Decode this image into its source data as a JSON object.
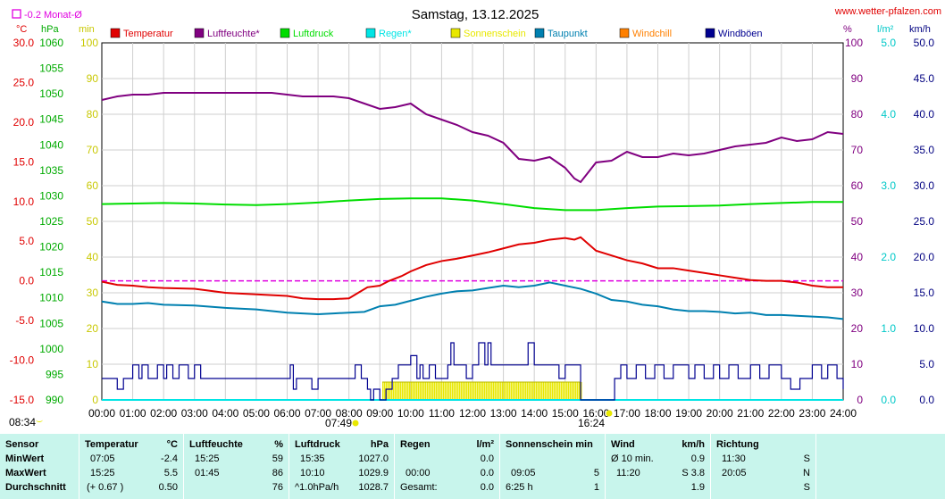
{
  "header": {
    "title": "Samstag, 13.12.2025",
    "site": "www.wetter-pfalzen.com",
    "rain_month_label": "-0.2 Monat-Ø"
  },
  "axes": {
    "left_units": [
      "°C",
      "hPa",
      "min"
    ],
    "right_units": [
      "%",
      "l/m²",
      "km/h"
    ],
    "temp_ticks": [
      "30.0",
      "25.0",
      "20.0",
      "15.0",
      "10.0",
      "5.0",
      "0.0",
      "-5.0",
      "-10.0",
      "-15.0"
    ],
    "pressure_ticks": [
      "1060",
      "1055",
      "1050",
      "1045",
      "1040",
      "1035",
      "1030",
      "1025",
      "1020",
      "1015",
      "1010",
      "1005",
      "1000",
      "995",
      "990"
    ],
    "min_ticks": [
      "100",
      "90",
      "80",
      "70",
      "60",
      "50",
      "40",
      "30",
      "20",
      "10",
      "0"
    ],
    "pct_ticks": [
      "100",
      "90",
      "80",
      "70",
      "60",
      "50",
      "40",
      "30",
      "20",
      "10",
      "0"
    ],
    "rain_ticks": [
      "5.0",
      "4.0",
      "3.0",
      "2.0",
      "1.0",
      "0.0"
    ],
    "wind_ticks": [
      "50.0",
      "45.0",
      "40.0",
      "35.0",
      "30.0",
      "25.0",
      "20.0",
      "15.0",
      "10.0",
      "5.0",
      "0.0"
    ],
    "time_ticks": [
      "00:00",
      "01:00",
      "02:00",
      "03:00",
      "04:00",
      "05:00",
      "06:00",
      "07:00",
      "08:00",
      "09:00",
      "10:00",
      "11:00",
      "12:00",
      "13:00",
      "14:00",
      "15:00",
      "16:00",
      "17:00",
      "18:00",
      "19:00",
      "20:00",
      "21:00",
      "22:00",
      "23:00",
      "24:00"
    ],
    "sunrise": "07:49",
    "sunset": "16:24",
    "moon_time": "08:34"
  },
  "legend": [
    {
      "label": "Temperatur",
      "color": "#e00000"
    },
    {
      "label": "Luftfeuchte*",
      "color": "#800080"
    },
    {
      "label": "Luftdruck",
      "color": "#00dd00"
    },
    {
      "label": "Regen*",
      "color": "#00e5e5"
    },
    {
      "label": "Sonnenschein",
      "color": "#e8e800"
    },
    {
      "label": "Taupunkt",
      "color": "#0080b0"
    },
    {
      "label": "Windchill",
      "color": "#ff8000"
    },
    {
      "label": "Windböen",
      "color": "#000090"
    }
  ],
  "chart_data": {
    "type": "line",
    "title": "Samstag, 13.12.2025",
    "x_unit": "hour of day",
    "xlim": [
      0,
      24
    ],
    "grid": true,
    "series": [
      {
        "name": "Temperatur",
        "axis": "°C",
        "ylim": [
          -15,
          30
        ],
        "color": "#e00000",
        "x": [
          0,
          0.5,
          1,
          1.5,
          2,
          3,
          4,
          5,
          6,
          6.5,
          7,
          7.5,
          8,
          8.3,
          8.6,
          9,
          9.3,
          9.7,
          10,
          10.5,
          11,
          11.5,
          12,
          12.5,
          13,
          13.5,
          14,
          14.5,
          15,
          15.3,
          15.5,
          16,
          16.5,
          17,
          17.5,
          18,
          18.5,
          19,
          19.5,
          20,
          20.5,
          21,
          21.5,
          22,
          22.5,
          23,
          23.5,
          24
        ],
        "y": [
          -0.1,
          -0.5,
          -0.6,
          -0.8,
          -0.9,
          -1.0,
          -1.5,
          -1.7,
          -1.9,
          -2.2,
          -2.3,
          -2.3,
          -2.2,
          -1.5,
          -0.8,
          -0.6,
          0.0,
          0.6,
          1.2,
          2.0,
          2.5,
          2.8,
          3.2,
          3.6,
          4.1,
          4.6,
          4.8,
          5.2,
          5.4,
          5.2,
          5.5,
          3.8,
          3.2,
          2.6,
          2.2,
          1.6,
          1.6,
          1.3,
          1.0,
          0.7,
          0.4,
          0.1,
          0.0,
          0.0,
          -0.2,
          -0.6,
          -0.8,
          -0.8
        ]
      },
      {
        "name": "Taupunkt",
        "axis": "°C",
        "ylim": [
          -15,
          30
        ],
        "color": "#0080b0",
        "x": [
          0,
          0.5,
          1,
          1.5,
          2,
          3,
          4,
          5,
          6,
          6.5,
          7,
          7.5,
          8,
          8.5,
          9,
          9.5,
          10,
          10.5,
          11,
          11.5,
          12,
          12.5,
          13,
          13.5,
          14,
          14.5,
          15,
          15.5,
          16,
          16.5,
          17,
          17.5,
          18,
          18.5,
          19,
          19.5,
          20,
          20.5,
          21,
          21.5,
          22,
          22.5,
          23,
          23.5,
          24
        ],
        "y": [
          -2.6,
          -2.9,
          -2.9,
          -2.8,
          -3.0,
          -3.1,
          -3.4,
          -3.6,
          -4.0,
          -4.1,
          -4.2,
          -4.1,
          -4.0,
          -3.9,
          -3.2,
          -3.0,
          -2.5,
          -2.0,
          -1.6,
          -1.3,
          -1.2,
          -0.9,
          -0.6,
          -0.8,
          -0.6,
          -0.2,
          -0.6,
          -1.0,
          -1.6,
          -2.4,
          -2.6,
          -3.0,
          -3.2,
          -3.6,
          -3.8,
          -3.8,
          -3.9,
          -4.1,
          -4.0,
          -4.3,
          -4.3,
          -4.4,
          -4.5,
          -4.6,
          -4.8
        ]
      },
      {
        "name": "Luftfeuchte*",
        "axis": "%",
        "ylim": [
          0,
          100
        ],
        "color": "#800080",
        "x": [
          0,
          0.5,
          1,
          1.5,
          2,
          2.5,
          3,
          3.5,
          4,
          4.5,
          5,
          5.5,
          6,
          6.5,
          7,
          7.5,
          8,
          8.5,
          9,
          9.5,
          10,
          10.5,
          11,
          11.5,
          12,
          12.5,
          13,
          13.5,
          14,
          14.5,
          15,
          15.3,
          15.5,
          16,
          16.5,
          17,
          17.5,
          18,
          18.5,
          19,
          19.5,
          20,
          20.5,
          21,
          21.5,
          22,
          22.5,
          23,
          23.5,
          24
        ],
        "y": [
          84,
          85,
          85.5,
          85.5,
          86,
          86,
          86,
          86,
          86,
          86,
          86,
          86,
          85.5,
          85,
          85,
          85,
          84.5,
          83,
          81.5,
          82,
          83,
          80,
          78.5,
          77,
          75,
          74,
          72,
          67.5,
          67,
          68,
          65,
          62,
          61,
          66.5,
          67,
          69.5,
          68,
          68,
          69,
          68.5,
          69,
          70,
          71,
          71.5,
          72,
          73.5,
          72.5,
          73,
          75,
          74.5
        ]
      },
      {
        "name": "Luftdruck",
        "axis": "hPa",
        "ylim": [
          990,
          1060
        ],
        "color": "#00dd00",
        "x": [
          0,
          1,
          2,
          3,
          4,
          5,
          6,
          7,
          8,
          9,
          10,
          11,
          12,
          13,
          14,
          15,
          16,
          17,
          18,
          19,
          20,
          21,
          22,
          23,
          24
        ],
        "y": [
          1028.4,
          1028.5,
          1028.6,
          1028.5,
          1028.3,
          1028.2,
          1028.4,
          1028.7,
          1029.1,
          1029.4,
          1029.5,
          1029.5,
          1029.1,
          1028.4,
          1027.6,
          1027.2,
          1027.2,
          1027.6,
          1027.9,
          1028.0,
          1028.1,
          1028.4,
          1028.6,
          1028.8,
          1028.8
        ]
      },
      {
        "name": "Windböen",
        "axis": "km/h",
        "ylim": [
          0,
          50
        ],
        "color": "#000090",
        "x": [
          0,
          0.4,
          0.5,
          0.7,
          0.8,
          1.0,
          1.2,
          1.3,
          1.5,
          1.7,
          1.8,
          2.0,
          2.1,
          2.3,
          2.5,
          2.8,
          3.0,
          3.2,
          3.4,
          3.6,
          4.0,
          4.5,
          5.0,
          5.5,
          6.0,
          6.1,
          6.2,
          6.3,
          6.5,
          6.8,
          7.0,
          7.2,
          7.5,
          8.0,
          8.2,
          8.4,
          8.6,
          8.7,
          8.8,
          9.0,
          9.2,
          9.4,
          9.6,
          10.0,
          10.2,
          10.3,
          10.4,
          10.6,
          10.8,
          11.0,
          11.2,
          11.3,
          11.4,
          11.6,
          11.8,
          12.0,
          12.2,
          12.4,
          12.5,
          12.6,
          12.8,
          13.0,
          13.2,
          13.5,
          13.7,
          13.8,
          14.0,
          14.4,
          14.6,
          14.8,
          15.0,
          15.3,
          15.5,
          16.3,
          16.5,
          16.6,
          16.8,
          17.0,
          17.3,
          17.6,
          17.9,
          18.2,
          18.5,
          18.8,
          19.0,
          19.2,
          19.5,
          19.8,
          20.0,
          20.3,
          20.6,
          21.0,
          21.3,
          21.6,
          22.0,
          22.3,
          22.6,
          23.0,
          23.3,
          23.5,
          23.8,
          24.0
        ],
        "y": [
          3.0,
          3.0,
          1.5,
          3.0,
          3.0,
          4.9,
          3.0,
          4.9,
          3.0,
          3.0,
          4.9,
          3.0,
          4.9,
          3.0,
          4.9,
          3.0,
          4.9,
          3.0,
          3.0,
          3.0,
          3.0,
          3.0,
          3.0,
          3.0,
          3.0,
          4.9,
          1.5,
          3.0,
          3.0,
          1.5,
          3.0,
          3.0,
          3.0,
          3.0,
          4.9,
          3.0,
          1.5,
          0.0,
          1.5,
          0.0,
          1.5,
          3.0,
          4.9,
          6.2,
          3.0,
          4.9,
          3.0,
          4.9,
          3.0,
          3.0,
          4.9,
          8.0,
          4.9,
          4.9,
          3.0,
          4.9,
          8.0,
          4.9,
          8.0,
          4.9,
          4.9,
          4.9,
          4.9,
          4.9,
          4.9,
          8.0,
          4.9,
          4.9,
          4.9,
          3.0,
          4.9,
          4.9,
          0.0,
          0.0,
          0.0,
          3.0,
          4.9,
          3.0,
          4.9,
          3.0,
          4.9,
          3.0,
          4.9,
          4.9,
          3.0,
          4.9,
          3.0,
          4.9,
          3.0,
          4.9,
          3.0,
          4.9,
          3.0,
          4.9,
          3.0,
          1.5,
          3.0,
          4.9,
          3.0,
          4.9,
          3.0,
          1.5
        ]
      },
      {
        "name": "Sonnenschein",
        "axis": "min",
        "ylim": [
          0,
          100
        ],
        "color": "#e8e800",
        "x": [
          9.08,
          15.5
        ],
        "y": [
          5,
          5
        ]
      },
      {
        "name": "Regen*",
        "axis": "l/m²",
        "ylim": [
          0,
          5
        ],
        "color": "#00e5e5",
        "x": [
          0,
          24
        ],
        "y": [
          0.0,
          0.0
        ]
      }
    ],
    "reference_line": {
      "axis": "°C",
      "value": 0.0,
      "color": "#e000e0",
      "style": "dashed"
    }
  },
  "stats": {
    "row_labels": [
      "Sensor",
      "MinWert",
      "MaxWert",
      "Durchschnitt"
    ],
    "temperature": {
      "title": "Temperatur",
      "unit": "°C",
      "min_time": "07:05",
      "min": "-2.4",
      "max_time": "15:25",
      "max": "5.5",
      "avg_note": "(+ 0.67 )",
      "avg": "0.50"
    },
    "humidity": {
      "title": "Luftfeuchte",
      "unit": "%",
      "min_time": "15:25",
      "min": "59",
      "max_time": "01:45",
      "max": "86",
      "avg": "76"
    },
    "pressure": {
      "title": "Luftdruck",
      "unit": "hPa",
      "min_time": "15:35",
      "min": "1027.0",
      "max_time": "10:10",
      "max": "1029.9",
      "avg_note": "^1.0hPa/h",
      "avg": "1028.7"
    },
    "rain": {
      "title": "Regen",
      "unit": "l/m²",
      "min": "0.0",
      "max_time": "00:00",
      "max": "0.0",
      "avg_note": "Gesamt:",
      "avg": "0.0"
    },
    "sun": {
      "title": "Sonnenschein min",
      "max_time": "09:05",
      "max": "5",
      "avg_note": "6:25 h",
      "avg": "1"
    },
    "wind": {
      "title": "Wind",
      "unit": "km/h",
      "min_time": "Ø 10 min.",
      "min": "0.9",
      "max_time": "11:20",
      "max": "S 3.8",
      "avg": "1.9"
    },
    "direction": {
      "title": "Richtung",
      "min_time": "11:30",
      "min": "S",
      "max_time": "20:05",
      "max": "N",
      "avg": "S"
    }
  }
}
